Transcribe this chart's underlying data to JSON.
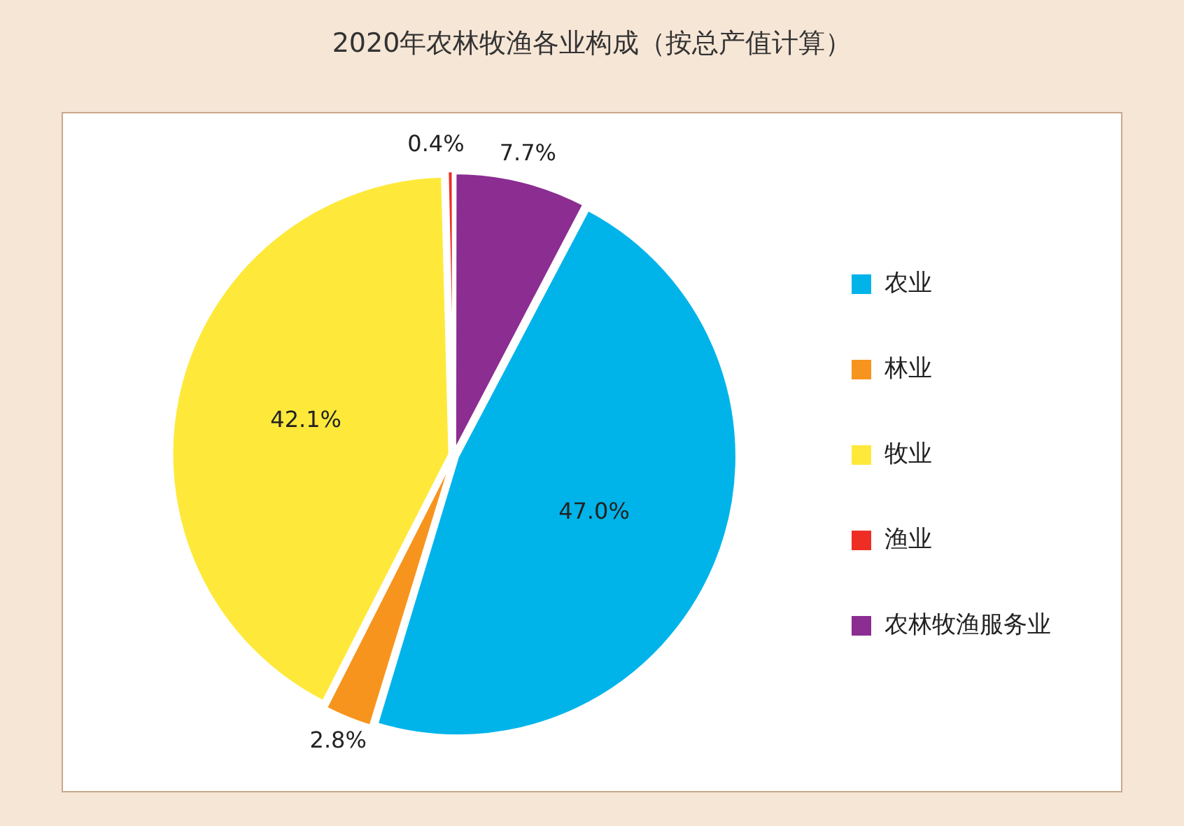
{
  "chart_data": {
    "type": "pie",
    "title": "2020年农林牧渔各业构成（按总产值计算）",
    "categories": [
      "农业",
      "林业",
      "牧业",
      "渔业",
      "农林牧渔服务业"
    ],
    "values": [
      47.0,
      2.8,
      42.1,
      0.4,
      7.7
    ],
    "colors": [
      "#00b4ea",
      "#f7941d",
      "#fee93b",
      "#ee2e24",
      "#8b2d91"
    ],
    "value_labels": [
      "47.0%",
      "2.8%",
      "42.1%",
      "0.4%",
      "7.7%"
    ],
    "legend": "right"
  }
}
